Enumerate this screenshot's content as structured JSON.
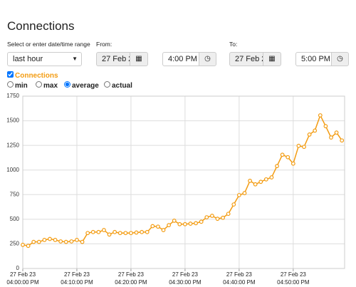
{
  "header": {
    "title": "Connections"
  },
  "controls": {
    "range_label": "Select or enter date/time range",
    "range_value": "last hour",
    "from_label": "From:",
    "from_date": "27 Feb 2",
    "from_time": "4:00 PM",
    "to_label": "To:",
    "to_date": "27 Feb 2",
    "to_time": "5:00 PM",
    "series_checkbox": "Connections",
    "series_checked": true,
    "modes": [
      "min",
      "max",
      "average",
      "actual"
    ],
    "selected_mode": "average"
  },
  "chart_data": {
    "type": "line",
    "grid": true,
    "series": [
      {
        "name": "Connections",
        "color": "#f39c12",
        "x": [
          "16:00:00",
          "16:01:00",
          "16:02:00",
          "16:03:00",
          "16:04:00",
          "16:05:00",
          "16:06:00",
          "16:07:00",
          "16:08:00",
          "16:09:00",
          "16:10:00",
          "16:11:00",
          "16:12:00",
          "16:13:00",
          "16:14:00",
          "16:15:00",
          "16:16:00",
          "16:17:00",
          "16:18:00",
          "16:19:00",
          "16:20:00",
          "16:21:00",
          "16:22:00",
          "16:23:00",
          "16:24:00",
          "16:25:00",
          "16:26:00",
          "16:27:00",
          "16:28:00",
          "16:29:00",
          "16:30:00",
          "16:31:00",
          "16:32:00",
          "16:33:00",
          "16:34:00",
          "16:35:00",
          "16:36:00",
          "16:37:00",
          "16:38:00",
          "16:39:00",
          "16:40:00",
          "16:41:00",
          "16:42:00",
          "16:43:00",
          "16:44:00",
          "16:45:00",
          "16:46:00",
          "16:47:00",
          "16:48:00",
          "16:49:00",
          "16:50:00",
          "16:51:00",
          "16:52:00",
          "16:53:00",
          "16:54:00",
          "16:55:00",
          "16:56:00",
          "16:57:00",
          "16:58:00",
          "16:59:00"
        ],
        "values": [
          240,
          230,
          270,
          270,
          290,
          300,
          290,
          275,
          270,
          275,
          290,
          270,
          360,
          370,
          370,
          390,
          345,
          370,
          360,
          360,
          360,
          365,
          370,
          370,
          430,
          425,
          390,
          440,
          485,
          450,
          450,
          455,
          460,
          475,
          520,
          535,
          505,
          515,
          555,
          650,
          745,
          765,
          890,
          855,
          880,
          905,
          925,
          1040,
          1155,
          1130,
          1065,
          1245,
          1235,
          1360,
          1400,
          1555,
          1445,
          1330,
          1380,
          1300
        ]
      }
    ],
    "xlim": [
      "16:00:00",
      "16:59:30"
    ],
    "xticks": [
      {
        "value": "16:00:00",
        "label": "27 Feb 23\n04:00:00 PM"
      },
      {
        "value": "16:10:00",
        "label": "27 Feb 23\n04:10:00 PM"
      },
      {
        "value": "16:20:00",
        "label": "27 Feb 23\n04:20:00 PM"
      },
      {
        "value": "16:30:00",
        "label": "27 Feb 23\n04:30:00 PM"
      },
      {
        "value": "16:40:00",
        "label": "27 Feb 23\n04:40:00 PM"
      },
      {
        "value": "16:50:00",
        "label": "27 Feb 23\n04:50:00 PM"
      }
    ],
    "ylim": [
      0,
      1750
    ],
    "yticks": [
      0,
      250,
      500,
      750,
      1000,
      1250,
      1500,
      1750
    ]
  }
}
